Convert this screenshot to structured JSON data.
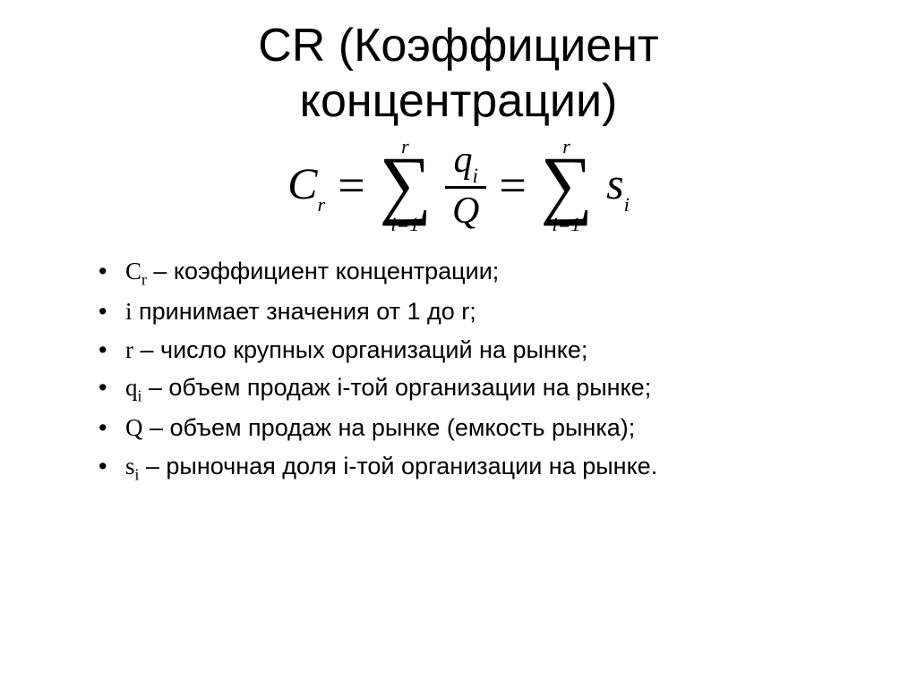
{
  "title_line1": "CR (Коэффициент",
  "title_line2": "концентрации)",
  "formula": {
    "lhs_var": "C",
    "lhs_sub": "r",
    "eq": "=",
    "sum1_top": "r",
    "sum1_bot": "i=1",
    "frac_num_var": "q",
    "frac_num_sub": "i",
    "frac_den": "Q",
    "sum2_top": "r",
    "sum2_bot": "i=1",
    "rhs_var": "s",
    "rhs_sub": "i",
    "sigma": "∑"
  },
  "defs": [
    {
      "var": "C",
      "sub": "r",
      "text": " – коэффициент концентрации;"
    },
    {
      "var": "i",
      "sub": "",
      "text": " принимает значения от 1 до r;"
    },
    {
      "var": "r",
      "sub": "",
      "text": " – число крупных организаций на рынке;"
    },
    {
      "var": "q",
      "sub": "i",
      "text": " – объем продаж i-той организации на рынке;"
    },
    {
      "var": "Q",
      "sub": "",
      "text": " – объем продаж на рынке (емкость рынка);"
    },
    {
      "var": "s",
      "sub": "i",
      "text": " – рыночная доля i-той организации на рынке."
    }
  ]
}
